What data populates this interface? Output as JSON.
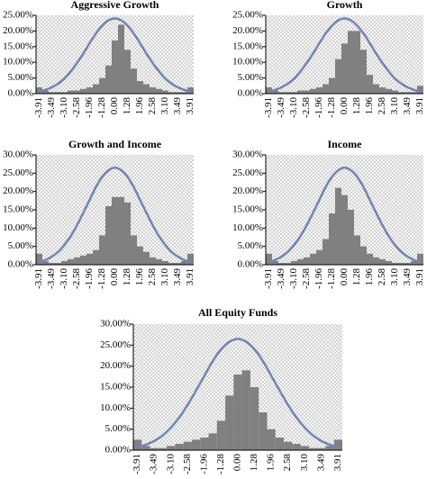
{
  "chart_data": [
    {
      "type": "bar",
      "title": "Aggressive Growth",
      "categories": [
        "-3.91",
        null,
        "-3.49",
        null,
        "-3.10",
        null,
        "-2.58",
        null,
        "-1.96",
        null,
        "-1.28",
        null,
        "0.00",
        null,
        "1.28",
        null,
        "1.96",
        null,
        "2.58",
        null,
        "3.10",
        null,
        "3.49",
        null,
        "3.91"
      ],
      "values": [
        2,
        1,
        0.5,
        0.5,
        0.5,
        1,
        1,
        1.5,
        2,
        3,
        5,
        9,
        17,
        22,
        14,
        8,
        4,
        3,
        2,
        1.5,
        1,
        0.5,
        0.5,
        0.5,
        2
      ],
      "curve_values": [
        0.6,
        1.2,
        2.0,
        3.2,
        4.8,
        7.1,
        9.8,
        12.8,
        16.1,
        19.2,
        21.7,
        23.4,
        24,
        23.4,
        21.7,
        19.2,
        16.1,
        12.8,
        9.8,
        7.1,
        4.8,
        3.2,
        2.0,
        1.2,
        0.6
      ],
      "color": "#808080",
      "curve_color": "#7384b0",
      "ylim": [
        0,
        25
      ],
      "yticks": [
        {
          "value": 0,
          "label": "0.00%"
        },
        {
          "value": 5,
          "label": "5.00%"
        },
        {
          "value": 10,
          "label": "10.00%"
        },
        {
          "value": 15,
          "label": "15.00%"
        },
        {
          "value": 20,
          "label": "20.00%"
        },
        {
          "value": 25,
          "label": "25.00%"
        }
      ]
    },
    {
      "type": "bar",
      "title": "Growth",
      "categories": [
        "-3.91",
        null,
        "-3.49",
        null,
        "-3.10",
        null,
        "-2.58",
        null,
        "-1.96",
        null,
        "-1.28",
        null,
        "0.00",
        null,
        "1.28",
        null,
        "1.96",
        null,
        "2.58",
        null,
        "3.10",
        null,
        "3.49",
        null,
        "3.91"
      ],
      "values": [
        2,
        1,
        0.5,
        0.5,
        0.5,
        1,
        1,
        1.5,
        2,
        3,
        5,
        11,
        16,
        20,
        20,
        14,
        6,
        3,
        2,
        1.5,
        1,
        0.5,
        0.5,
        0.5,
        2.5
      ],
      "curve_values": [
        0.6,
        1.2,
        2.0,
        3.2,
        4.8,
        7.1,
        9.8,
        12.8,
        16.1,
        19.2,
        21.7,
        23.4,
        24,
        23.4,
        21.7,
        19.2,
        16.1,
        12.8,
        9.8,
        7.1,
        4.8,
        3.2,
        2.0,
        1.2,
        0.6
      ],
      "color": "#808080",
      "curve_color": "#7384b0",
      "ylim": [
        0,
        25
      ],
      "yticks": [
        {
          "value": 0,
          "label": "0.00%"
        },
        {
          "value": 5,
          "label": "5.00%"
        },
        {
          "value": 10,
          "label": "10.00%"
        },
        {
          "value": 15,
          "label": "15.00%"
        },
        {
          "value": 20,
          "label": "20.00%"
        },
        {
          "value": 25,
          "label": "25.00%"
        }
      ]
    },
    {
      "type": "bar",
      "title": "Growth and Income",
      "categories": [
        "-3.91",
        null,
        "-3.49",
        null,
        "-3.10",
        null,
        "-2.58",
        null,
        "-1.96",
        null,
        "-1.28",
        null,
        "0.00",
        null,
        "1.28",
        null,
        "1.96",
        null,
        "2.58",
        null,
        "3.10",
        null,
        "3.49",
        null,
        "3.91"
      ],
      "values": [
        3,
        1,
        0.5,
        0.5,
        1,
        1.5,
        2,
        2.5,
        3,
        4,
        8,
        16,
        18.5,
        18.5,
        17,
        8,
        5,
        3.5,
        2,
        1.5,
        1,
        0.5,
        0.5,
        1,
        3
      ],
      "curve_values": [
        0.7,
        1.3,
        2.2,
        3.5,
        5.4,
        7.8,
        10.8,
        14.2,
        17.7,
        21.2,
        24.0,
        25.8,
        26.5,
        25.8,
        24.0,
        21.2,
        17.7,
        14.2,
        10.8,
        7.8,
        5.4,
        3.5,
        2.2,
        1.3,
        0.7
      ],
      "color": "#808080",
      "curve_color": "#7384b0",
      "ylim": [
        0,
        30
      ],
      "yticks": [
        {
          "value": 0,
          "label": "0.00%"
        },
        {
          "value": 5,
          "label": "5.00%"
        },
        {
          "value": 10,
          "label": "10.00%"
        },
        {
          "value": 15,
          "label": "15.00%"
        },
        {
          "value": 20,
          "label": "20.00%"
        },
        {
          "value": 25,
          "label": "25.00%"
        },
        {
          "value": 30,
          "label": "30.00%"
        }
      ]
    },
    {
      "type": "bar",
      "title": "Income",
      "categories": [
        "-3.91",
        null,
        "-3.49",
        null,
        "-3.10",
        null,
        "-2.58",
        null,
        "-1.96",
        null,
        "-1.28",
        null,
        "0.00",
        null,
        "1.28",
        null,
        "1.96",
        null,
        "2.58",
        null,
        "3.10",
        null,
        "3.49",
        null,
        "3.91"
      ],
      "values": [
        3,
        1,
        0.5,
        0.5,
        1,
        1.5,
        2,
        3,
        4,
        7,
        14,
        21,
        19,
        15,
        8,
        5,
        3,
        2,
        1.5,
        1,
        0.5,
        0.5,
        0.5,
        1,
        3
      ],
      "curve_values": [
        0.7,
        1.3,
        2.2,
        3.5,
        5.4,
        7.8,
        10.8,
        14.2,
        17.7,
        21.2,
        24.0,
        25.8,
        26.5,
        25.8,
        24.0,
        21.2,
        17.7,
        14.2,
        10.8,
        7.8,
        5.4,
        3.5,
        2.2,
        1.3,
        0.7
      ],
      "color": "#808080",
      "curve_color": "#7384b0",
      "ylim": [
        0,
        30
      ],
      "yticks": [
        {
          "value": 0,
          "label": "0.00%"
        },
        {
          "value": 5,
          "label": "5.00%"
        },
        {
          "value": 10,
          "label": "10.00%"
        },
        {
          "value": 15,
          "label": "15.00%"
        },
        {
          "value": 20,
          "label": "20.00%"
        },
        {
          "value": 25,
          "label": "25.00%"
        },
        {
          "value": 30,
          "label": "30.00%"
        }
      ]
    },
    {
      "type": "bar",
      "title": "All Equity Funds",
      "categories": [
        "-3.91",
        null,
        "-3.49",
        null,
        "-3.10",
        null,
        "-2.58",
        null,
        "-1.96",
        null,
        "-1.28",
        null,
        "0.00",
        null,
        "1.28",
        null,
        "1.96",
        null,
        "2.58",
        null,
        "3.10",
        null,
        "3.49",
        null,
        "3.91"
      ],
      "values": [
        2.5,
        1,
        0.5,
        0.5,
        1,
        1.5,
        2,
        2.5,
        3,
        4,
        7,
        13,
        18,
        19,
        15,
        9,
        5,
        3,
        2,
        1.5,
        1,
        0.5,
        0.5,
        1,
        2.5
      ],
      "curve_values": [
        0.7,
        1.3,
        2.2,
        3.5,
        5.4,
        7.8,
        10.8,
        14.2,
        17.7,
        21.2,
        24.0,
        25.8,
        26.5,
        25.8,
        24.0,
        21.2,
        17.7,
        14.2,
        10.8,
        7.8,
        5.4,
        3.5,
        2.2,
        1.3,
        0.7
      ],
      "color": "#808080",
      "curve_color": "#7384b0",
      "ylim": [
        0,
        30
      ],
      "yticks": [
        {
          "value": 0,
          "label": "0.00%"
        },
        {
          "value": 5,
          "label": "5.00%"
        },
        {
          "value": 10,
          "label": "10.00%"
        },
        {
          "value": 15,
          "label": "15.00%"
        },
        {
          "value": 20,
          "label": "20.00%"
        },
        {
          "value": 25,
          "label": "25.00%"
        },
        {
          "value": 30,
          "label": "30.00%"
        }
      ]
    }
  ]
}
